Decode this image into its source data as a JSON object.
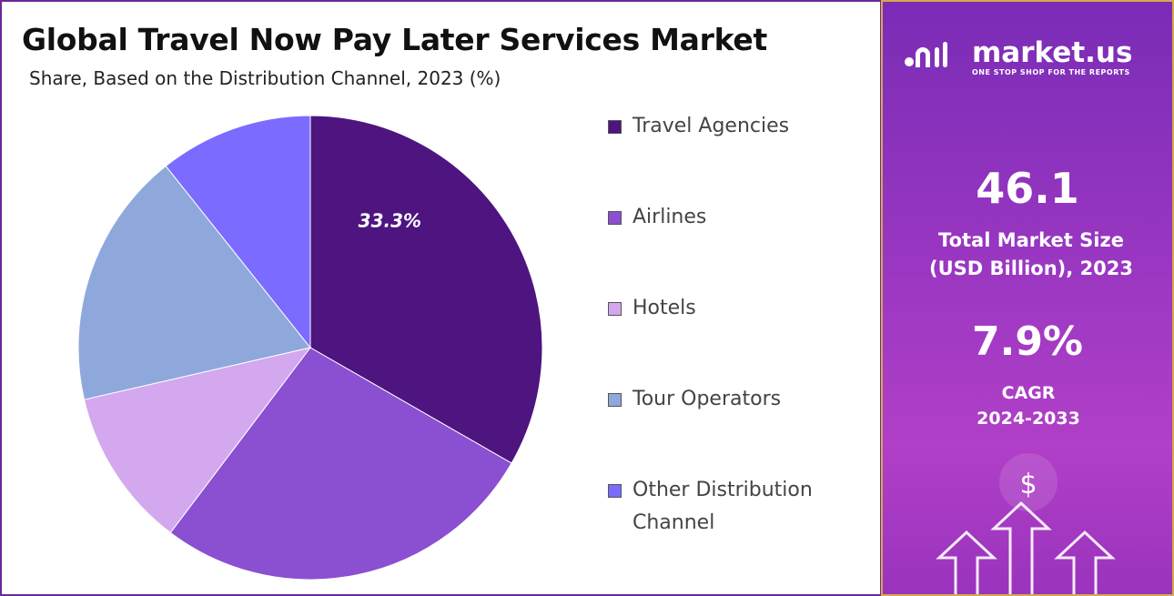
{
  "chart_data": {
    "type": "pie",
    "title": "Global Travel Now Pay Later Services Market",
    "subtitle": "Share, Based on the Distribution Channel, 2023 (%)",
    "categories": [
      "Travel Agencies",
      "Airlines",
      "Hotels",
      "Tour Operators",
      "Other Distribution Channel"
    ],
    "values": [
      33.3,
      27.0,
      11.1,
      17.9,
      10.7
    ],
    "value_labels": [
      "33.3%",
      null,
      null,
      null,
      null
    ],
    "colors": [
      "#4e1480",
      "#8b4fd1",
      "#d3a8ef",
      "#8fa8dc",
      "#7b6bff"
    ]
  },
  "sidebar": {
    "brand": "market.us",
    "tagline": "ONE STOP SHOP FOR THE REPORTS",
    "market_size": {
      "value": "46.1",
      "label": "Total Market Size (USD Billion), 2023"
    },
    "cagr": {
      "value": "7.9%",
      "label": "CAGR 2024-2033"
    }
  }
}
